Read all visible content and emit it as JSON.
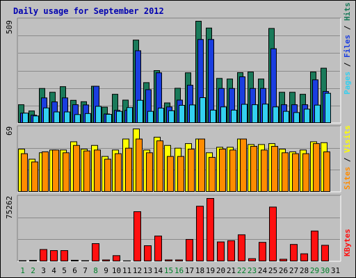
{
  "title": "Daily usage for September 2012",
  "colors": {
    "hits": "#1a7a5a",
    "files": "#1a3ee0",
    "pages": "#33d0f0",
    "visits": "#ffff00",
    "sites": "#ff8c00",
    "kbytes": "#ff1010",
    "grid": "#8a8a8a",
    "panel_bg": "#c0c0c0"
  },
  "chart_data": [
    {
      "type": "bar",
      "name": "hits-files-pages",
      "y_max_label": "509",
      "ylim": [
        0,
        509
      ],
      "legend_labels": {
        "pages": "Pages",
        "files": "Files",
        "hits": "Hits",
        "separator": " / "
      },
      "categories": [
        "1",
        "2",
        "3",
        "4",
        "5",
        "6",
        "7",
        "8",
        "9",
        "10",
        "11",
        "12",
        "13",
        "14",
        "15",
        "16",
        "17",
        "18",
        "19",
        "20",
        "21",
        "22",
        "23",
        "24",
        "25",
        "26",
        "27",
        "28",
        "29",
        "30",
        "31"
      ],
      "series": [
        {
          "name": "Hits",
          "values": [
            93,
            62,
            174,
            155,
            183,
            115,
            108,
            185,
            81,
            145,
            116,
            415,
            203,
            263,
            102,
            175,
            252,
            509,
            475,
            224,
            221,
            253,
            256,
            221,
            473,
            155,
            155,
            145,
            256,
            275,
            0
          ]
        },
        {
          "name": "Files",
          "values": [
            51,
            41,
            127,
            107,
            127,
            93,
            92,
            185,
            47,
            65,
            65,
            362,
            168,
            252,
            82,
            116,
            190,
            418,
            418,
            174,
            174,
            232,
            174,
            174,
            372,
            93,
            93,
            93,
            217,
            159,
            0
          ]
        },
        {
          "name": "Pages",
          "values": [
            51,
            37,
            77,
            57,
            57,
            44,
            49,
            85,
            45,
            60,
            79,
            115,
            60,
            76,
            63,
            90,
            92,
            128,
            66,
            82,
            66,
            95,
            93,
            96,
            82,
            60,
            54,
            71,
            91,
            150,
            0
          ]
        }
      ]
    },
    {
      "type": "bar",
      "name": "visits-sites",
      "y_max_label": "69",
      "ylim": [
        0,
        69
      ],
      "legend_labels": {
        "sites": "Sites",
        "visits": "Visits",
        "separator": " / "
      },
      "categories": [
        "1",
        "2",
        "3",
        "4",
        "5",
        "6",
        "7",
        "8",
        "9",
        "10",
        "11",
        "12",
        "13",
        "14",
        "15",
        "16",
        "17",
        "18",
        "19",
        "20",
        "21",
        "22",
        "23",
        "24",
        "25",
        "26",
        "27",
        "28",
        "29",
        "30",
        "31"
      ],
      "series": [
        {
          "name": "Visits",
          "values": [
            47,
            36,
            43,
            46,
            46,
            55,
            47,
            51,
            39,
            46,
            58,
            69,
            46,
            60,
            51,
            48,
            53,
            58,
            43,
            49,
            49,
            58,
            52,
            52,
            53,
            47,
            44,
            46,
            55,
            54,
            0
          ]
        },
        {
          "name": "Sites",
          "values": [
            42,
            33,
            44,
            46,
            43,
            51,
            45,
            46,
            36,
            42,
            48,
            58,
            43,
            56,
            39,
            39,
            47,
            58,
            38,
            47,
            46,
            58,
            50,
            46,
            50,
            43,
            42,
            42,
            53,
            44,
            0
          ]
        }
      ]
    },
    {
      "type": "bar",
      "name": "kbytes",
      "y_max_label": "75262",
      "ylim": [
        0,
        75262
      ],
      "legend_labels": {
        "kbytes": "KBytes"
      },
      "categories": [
        "1",
        "2",
        "3",
        "4",
        "5",
        "6",
        "7",
        "8",
        "9",
        "10",
        "11",
        "12",
        "13",
        "14",
        "15",
        "16",
        "17",
        "18",
        "19",
        "20",
        "21",
        "22",
        "23",
        "24",
        "25",
        "26",
        "27",
        "28",
        "29",
        "30",
        "31"
      ],
      "series": [
        {
          "name": "KBytes",
          "values": [
            1200,
            1500,
            14500,
            13200,
            13200,
            1700,
            1200,
            21500,
            2100,
            7200,
            1000,
            59500,
            19000,
            30500,
            2100,
            2100,
            26500,
            66000,
            75262,
            23500,
            25000,
            32000,
            3600,
            23000,
            65000,
            2900,
            20500,
            9400,
            36500,
            19500,
            0
          ]
        }
      ]
    }
  ],
  "x_axis": {
    "labels": [
      "1",
      "2",
      "3",
      "4",
      "5",
      "6",
      "7",
      "8",
      "9",
      "10",
      "11",
      "12",
      "13",
      "14",
      "15",
      "16",
      "17",
      "18",
      "19",
      "20",
      "21",
      "22",
      "23",
      "24",
      "25",
      "26",
      "27",
      "28",
      "29",
      "30",
      "31"
    ],
    "weekend_days": [
      "1",
      "2",
      "8",
      "15",
      "16",
      "22",
      "23",
      "29",
      "30"
    ],
    "weekend_color": "#00802a",
    "weekday_color": "#000000"
  }
}
